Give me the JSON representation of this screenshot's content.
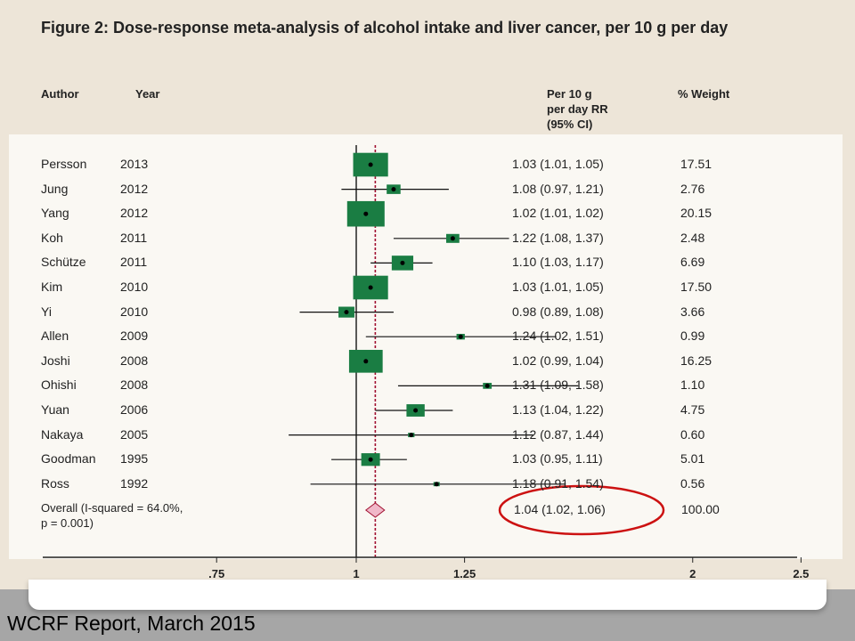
{
  "figure": {
    "title": "Figure 2: Dose-response meta-analysis of alcohol intake and liver cancer, per 10 g per day"
  },
  "headers": {
    "author": "Author",
    "year": "Year",
    "rr": [
      "Per 10 g",
      "per day RR",
      "(95% CI)"
    ],
    "weight": "% Weight"
  },
  "chart_data": {
    "type": "forest",
    "studies": [
      {
        "author": "Persson",
        "year": "2013",
        "rr": 1.03,
        "lo": 1.01,
        "hi": 1.05,
        "rr_text": "1.03 (1.01, 1.05)",
        "weight": "17.51"
      },
      {
        "author": "Jung",
        "year": "2012",
        "rr": 1.08,
        "lo": 0.97,
        "hi": 1.21,
        "rr_text": "1.08 (0.97, 1.21)",
        "weight": "2.76"
      },
      {
        "author": "Yang",
        "year": "2012",
        "rr": 1.02,
        "lo": 1.01,
        "hi": 1.02,
        "rr_text": "1.02 (1.01, 1.02)",
        "weight": "20.15"
      },
      {
        "author": "Koh",
        "year": "2011",
        "rr": 1.22,
        "lo": 1.08,
        "hi": 1.37,
        "rr_text": "1.22 (1.08, 1.37)",
        "weight": "2.48"
      },
      {
        "author": "Schütze",
        "year": "2011",
        "rr": 1.1,
        "lo": 1.03,
        "hi": 1.17,
        "rr_text": "1.10 (1.03, 1.17)",
        "weight": "6.69"
      },
      {
        "author": "Kim",
        "year": "2010",
        "rr": 1.03,
        "lo": 1.01,
        "hi": 1.05,
        "rr_text": "1.03 (1.01, 1.05)",
        "weight": "17.50"
      },
      {
        "author": "Yi",
        "year": "2010",
        "rr": 0.98,
        "lo": 0.89,
        "hi": 1.08,
        "rr_text": "0.98 (0.89, 1.08)",
        "weight": "3.66"
      },
      {
        "author": "Allen",
        "year": "2009",
        "rr": 1.24,
        "lo": 1.02,
        "hi": 1.51,
        "rr_text": "1.24 (1.02, 1.51)",
        "weight": "0.99"
      },
      {
        "author": "Joshi",
        "year": "2008",
        "rr": 1.02,
        "lo": 0.99,
        "hi": 1.04,
        "rr_text": "1.02 (0.99, 1.04)",
        "weight": "16.25"
      },
      {
        "author": "Ohishi",
        "year": "2008",
        "rr": 1.31,
        "lo": 1.09,
        "hi": 1.58,
        "rr_text": "1.31 (1.09, 1.58)",
        "weight": "1.10"
      },
      {
        "author": "Yuan",
        "year": "2006",
        "rr": 1.13,
        "lo": 1.04,
        "hi": 1.22,
        "rr_text": "1.13 (1.04, 1.22)",
        "weight": "4.75"
      },
      {
        "author": "Nakaya",
        "year": "2005",
        "rr": 1.12,
        "lo": 0.87,
        "hi": 1.44,
        "rr_text": "1.12 (0.87, 1.44)",
        "weight": "0.60"
      },
      {
        "author": "Goodman",
        "year": "1995",
        "rr": 1.03,
        "lo": 0.95,
        "hi": 1.11,
        "rr_text": "1.03 (0.95, 1.11)",
        "weight": "5.01"
      },
      {
        "author": "Ross",
        "year": "1992",
        "rr": 1.18,
        "lo": 0.91,
        "hi": 1.54,
        "rr_text": "1.18 (0.91, 1.54)",
        "weight": "0.56"
      }
    ],
    "overall": {
      "label": [
        "Overall (I-squared = 64.0%,",
        "p = 0.001)"
      ],
      "rr": 1.04,
      "lo": 1.02,
      "hi": 1.06,
      "rr_text": "1.04 (1.02, 1.06)",
      "weight": "100.00"
    },
    "x_scale": "log",
    "x_ticks": [
      0.75,
      1,
      1.25,
      2,
      2.5
    ],
    "x_tick_labels": [
      ".75",
      "1",
      "1.25",
      "2",
      "2.5"
    ],
    "null_line": 1,
    "overall_line": 1.04,
    "highlight": "overall"
  },
  "colors": {
    "box": "#1a7d43",
    "overall_line": "#a01030",
    "highlight_ellipse": "#cc1111",
    "panel_background": "#faf8f3",
    "page_background": "#ede5d8"
  },
  "footer": {
    "source": "WCRF Report, March 2015"
  }
}
